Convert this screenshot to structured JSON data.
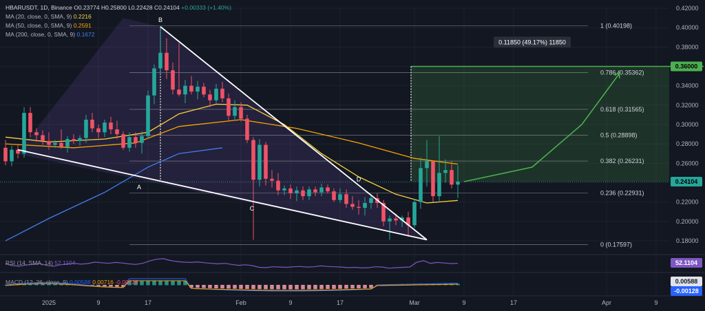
{
  "header": {
    "symbol": "HBARUSDT, 1D, Binance",
    "open": "O0.23774",
    "high": "H0.25800",
    "low": "L0.22428",
    "close": "C0.24104",
    "change": "+0.00333 (+1.40%)"
  },
  "ma_legend": [
    {
      "label": "MA (20, close, 0, SMA, 9)",
      "value": "0.2216",
      "color": "#f7d23c"
    },
    {
      "label": "MA (50, close, 0, SMA, 9)",
      "value": "0.2591",
      "color": "#f7a600"
    },
    {
      "label": "MA (200, close, 0, SMA, 9)",
      "value": "0.1672",
      "color": "#3f7ef0"
    }
  ],
  "rsi": {
    "label": "RSI (14, SMA, 14)",
    "value": "52.1104"
  },
  "macd": {
    "label": "MACD (12, 26, close, 9)",
    "value1": "0.00588",
    "value2": "0.00716",
    "value3": "-0.00128",
    "axis_values": [
      "0.00588",
      "-0.00128"
    ]
  },
  "price_axis": [
    "0.42000",
    "0.40000",
    "0.38000",
    "0.36000",
    "0.34000",
    "0.32000",
    "0.30000",
    "0.28000",
    "0.26000",
    "0.24000",
    "0.22000",
    "0.20000",
    "0.18000"
  ],
  "price_badges": {
    "target": "0.36000",
    "current": "0.24104"
  },
  "rsi_badge": "52.1104",
  "macd_badges": [
    "0.00588",
    "-0.00128"
  ],
  "time_axis": [
    "2025",
    "9",
    "17",
    "Feb",
    "9",
    "17",
    "Mar",
    "9",
    "17",
    "Apr",
    "9"
  ],
  "measure_label": "0.11850 (49.17%) 11850",
  "colors": {
    "up": "#26a69a",
    "down": "#ef5367",
    "ma20": "#f7d23c",
    "ma50": "#f7a600",
    "ma200": "#3f7ef0",
    "rsi": "#7e57c2",
    "fib": "#b2b5be",
    "projection": "#4caf50"
  },
  "chart_data": {
    "type": "candlestick",
    "symbol": "HBARUSDT",
    "interval": "1D",
    "x_range": [
      "2024-12-25",
      "2025-04-12"
    ],
    "ylim": [
      0.17,
      0.42
    ],
    "candles": [
      {
        "d": "2024-12-25",
        "o": 0.276,
        "h": 0.284,
        "l": 0.258,
        "c": 0.262
      },
      {
        "d": "2024-12-26",
        "o": 0.262,
        "h": 0.278,
        "l": 0.257,
        "c": 0.274
      },
      {
        "d": "2024-12-27",
        "o": 0.274,
        "h": 0.279,
        "l": 0.265,
        "c": 0.27
      },
      {
        "d": "2024-12-28",
        "o": 0.27,
        "h": 0.318,
        "l": 0.266,
        "c": 0.312
      },
      {
        "d": "2024-12-29",
        "o": 0.312,
        "h": 0.318,
        "l": 0.287,
        "c": 0.292
      },
      {
        "d": "2024-12-30",
        "o": 0.292,
        "h": 0.296,
        "l": 0.282,
        "c": 0.289
      },
      {
        "d": "2024-12-31",
        "o": 0.289,
        "h": 0.294,
        "l": 0.279,
        "c": 0.283
      },
      {
        "d": "2025-01-01",
        "o": 0.283,
        "h": 0.292,
        "l": 0.274,
        "c": 0.279
      },
      {
        "d": "2025-01-02",
        "o": 0.279,
        "h": 0.284,
        "l": 0.276,
        "c": 0.281
      },
      {
        "d": "2025-01-03",
        "o": 0.281,
        "h": 0.295,
        "l": 0.275,
        "c": 0.277
      },
      {
        "d": "2025-01-04",
        "o": 0.277,
        "h": 0.288,
        "l": 0.271,
        "c": 0.285
      },
      {
        "d": "2025-01-05",
        "o": 0.285,
        "h": 0.29,
        "l": 0.28,
        "c": 0.283
      },
      {
        "d": "2025-01-06",
        "o": 0.283,
        "h": 0.289,
        "l": 0.278,
        "c": 0.286
      },
      {
        "d": "2025-01-07",
        "o": 0.286,
        "h": 0.31,
        "l": 0.281,
        "c": 0.305
      },
      {
        "d": "2025-01-08",
        "o": 0.305,
        "h": 0.312,
        "l": 0.292,
        "c": 0.296
      },
      {
        "d": "2025-01-09",
        "o": 0.296,
        "h": 0.3,
        "l": 0.286,
        "c": 0.292
      },
      {
        "d": "2025-01-10",
        "o": 0.292,
        "h": 0.305,
        "l": 0.287,
        "c": 0.302
      },
      {
        "d": "2025-01-11",
        "o": 0.302,
        "h": 0.308,
        "l": 0.29,
        "c": 0.295
      },
      {
        "d": "2025-01-12",
        "o": 0.295,
        "h": 0.304,
        "l": 0.285,
        "c": 0.29
      },
      {
        "d": "2025-01-13",
        "o": 0.29,
        "h": 0.293,
        "l": 0.274,
        "c": 0.276
      },
      {
        "d": "2025-01-14",
        "o": 0.276,
        "h": 0.292,
        "l": 0.272,
        "c": 0.287
      },
      {
        "d": "2025-01-15",
        "o": 0.287,
        "h": 0.292,
        "l": 0.276,
        "c": 0.281
      },
      {
        "d": "2025-01-16",
        "o": 0.281,
        "h": 0.293,
        "l": 0.27,
        "c": 0.288
      },
      {
        "d": "2025-01-17",
        "o": 0.288,
        "h": 0.335,
        "l": 0.286,
        "c": 0.33
      },
      {
        "d": "2025-01-18",
        "o": 0.33,
        "h": 0.362,
        "l": 0.321,
        "c": 0.358
      },
      {
        "d": "2025-01-19",
        "o": 0.358,
        "h": 0.401,
        "l": 0.352,
        "c": 0.374
      },
      {
        "d": "2025-01-20",
        "o": 0.374,
        "h": 0.389,
        "l": 0.347,
        "c": 0.356
      },
      {
        "d": "2025-01-21",
        "o": 0.356,
        "h": 0.364,
        "l": 0.331,
        "c": 0.336
      },
      {
        "d": "2025-01-22",
        "o": 0.336,
        "h": 0.384,
        "l": 0.329,
        "c": 0.331
      },
      {
        "d": "2025-01-23",
        "o": 0.331,
        "h": 0.346,
        "l": 0.322,
        "c": 0.34
      },
      {
        "d": "2025-01-24",
        "o": 0.34,
        "h": 0.35,
        "l": 0.331,
        "c": 0.334
      },
      {
        "d": "2025-01-25",
        "o": 0.334,
        "h": 0.345,
        "l": 0.326,
        "c": 0.339
      },
      {
        "d": "2025-01-26",
        "o": 0.339,
        "h": 0.343,
        "l": 0.328,
        "c": 0.331
      },
      {
        "d": "2025-01-27",
        "o": 0.331,
        "h": 0.336,
        "l": 0.318,
        "c": 0.325
      },
      {
        "d": "2025-01-28",
        "o": 0.325,
        "h": 0.342,
        "l": 0.322,
        "c": 0.337
      },
      {
        "d": "2025-01-29",
        "o": 0.337,
        "h": 0.344,
        "l": 0.323,
        "c": 0.327
      },
      {
        "d": "2025-01-30",
        "o": 0.327,
        "h": 0.332,
        "l": 0.303,
        "c": 0.309
      },
      {
        "d": "2025-01-31",
        "o": 0.309,
        "h": 0.325,
        "l": 0.304,
        "c": 0.318
      },
      {
        "d": "2025-02-01",
        "o": 0.318,
        "h": 0.323,
        "l": 0.303,
        "c": 0.306
      },
      {
        "d": "2025-02-02",
        "o": 0.306,
        "h": 0.31,
        "l": 0.281,
        "c": 0.284
      },
      {
        "d": "2025-02-03",
        "o": 0.284,
        "h": 0.287,
        "l": 0.181,
        "c": 0.243
      },
      {
        "d": "2025-02-04",
        "o": 0.243,
        "h": 0.285,
        "l": 0.236,
        "c": 0.279
      },
      {
        "d": "2025-02-05",
        "o": 0.279,
        "h": 0.282,
        "l": 0.237,
        "c": 0.244
      },
      {
        "d": "2025-02-06",
        "o": 0.244,
        "h": 0.253,
        "l": 0.235,
        "c": 0.242
      },
      {
        "d": "2025-02-07",
        "o": 0.242,
        "h": 0.25,
        "l": 0.227,
        "c": 0.232
      },
      {
        "d": "2025-02-08",
        "o": 0.232,
        "h": 0.237,
        "l": 0.227,
        "c": 0.234
      },
      {
        "d": "2025-02-09",
        "o": 0.234,
        "h": 0.238,
        "l": 0.223,
        "c": 0.229
      },
      {
        "d": "2025-02-10",
        "o": 0.229,
        "h": 0.236,
        "l": 0.221,
        "c": 0.232
      },
      {
        "d": "2025-02-11",
        "o": 0.232,
        "h": 0.236,
        "l": 0.222,
        "c": 0.226
      },
      {
        "d": "2025-02-12",
        "o": 0.226,
        "h": 0.236,
        "l": 0.222,
        "c": 0.233
      },
      {
        "d": "2025-02-13",
        "o": 0.233,
        "h": 0.236,
        "l": 0.226,
        "c": 0.23
      },
      {
        "d": "2025-02-14",
        "o": 0.23,
        "h": 0.239,
        "l": 0.226,
        "c": 0.235
      },
      {
        "d": "2025-02-15",
        "o": 0.235,
        "h": 0.238,
        "l": 0.229,
        "c": 0.231
      },
      {
        "d": "2025-02-16",
        "o": 0.231,
        "h": 0.234,
        "l": 0.22,
        "c": 0.222
      },
      {
        "d": "2025-02-17",
        "o": 0.222,
        "h": 0.234,
        "l": 0.219,
        "c": 0.228
      },
      {
        "d": "2025-02-18",
        "o": 0.228,
        "h": 0.233,
        "l": 0.214,
        "c": 0.218
      },
      {
        "d": "2025-02-19",
        "o": 0.218,
        "h": 0.226,
        "l": 0.212,
        "c": 0.215
      },
      {
        "d": "2025-02-20",
        "o": 0.215,
        "h": 0.222,
        "l": 0.207,
        "c": 0.214
      },
      {
        "d": "2025-02-21",
        "o": 0.214,
        "h": 0.225,
        "l": 0.206,
        "c": 0.219
      },
      {
        "d": "2025-02-22",
        "o": 0.219,
        "h": 0.228,
        "l": 0.213,
        "c": 0.224
      },
      {
        "d": "2025-02-23",
        "o": 0.224,
        "h": 0.229,
        "l": 0.214,
        "c": 0.219
      },
      {
        "d": "2025-02-24",
        "o": 0.219,
        "h": 0.222,
        "l": 0.195,
        "c": 0.2
      },
      {
        "d": "2025-02-25",
        "o": 0.2,
        "h": 0.206,
        "l": 0.181,
        "c": 0.203
      },
      {
        "d": "2025-02-26",
        "o": 0.203,
        "h": 0.208,
        "l": 0.196,
        "c": 0.201
      },
      {
        "d": "2025-02-27",
        "o": 0.201,
        "h": 0.206,
        "l": 0.194,
        "c": 0.204
      },
      {
        "d": "2025-02-28",
        "o": 0.204,
        "h": 0.21,
        "l": 0.184,
        "c": 0.196
      },
      {
        "d": "2025-03-01",
        "o": 0.196,
        "h": 0.223,
        "l": 0.193,
        "c": 0.22
      },
      {
        "d": "2025-03-02",
        "o": 0.22,
        "h": 0.266,
        "l": 0.213,
        "c": 0.255
      },
      {
        "d": "2025-03-03",
        "o": 0.255,
        "h": 0.284,
        "l": 0.236,
        "c": 0.262
      },
      {
        "d": "2025-03-04",
        "o": 0.262,
        "h": 0.263,
        "l": 0.22,
        "c": 0.226
      },
      {
        "d": "2025-03-05",
        "o": 0.226,
        "h": 0.288,
        "l": 0.221,
        "c": 0.25
      },
      {
        "d": "2025-03-06",
        "o": 0.25,
        "h": 0.264,
        "l": 0.24,
        "c": 0.253
      },
      {
        "d": "2025-03-07",
        "o": 0.253,
        "h": 0.262,
        "l": 0.234,
        "c": 0.238
      },
      {
        "d": "2025-03-08",
        "o": 0.238,
        "h": 0.258,
        "l": 0.224,
        "c": 0.241
      }
    ],
    "moving_averages": [
      {
        "name": "MA (20, close, 0, SMA, 9)",
        "last": 0.2216,
        "points": [
          [
            "2024-12-25",
            0.287
          ],
          [
            "2025-01-01",
            0.282
          ],
          [
            "2025-01-10",
            0.285
          ],
          [
            "2025-01-17",
            0.292
          ],
          [
            "2025-01-22",
            0.311
          ],
          [
            "2025-01-28",
            0.321
          ],
          [
            "2025-02-02",
            0.32
          ],
          [
            "2025-02-08",
            0.3
          ],
          [
            "2025-02-14",
            0.27
          ],
          [
            "2025-02-20",
            0.246
          ],
          [
            "2025-02-26",
            0.228
          ],
          [
            "2025-03-03",
            0.219
          ],
          [
            "2025-03-08",
            0.2216
          ]
        ]
      },
      {
        "name": "MA (50, close, 0, SMA, 9)",
        "last": 0.2591,
        "points": [
          [
            "2024-12-25",
            0.28
          ],
          [
            "2025-01-05",
            0.276
          ],
          [
            "2025-01-15",
            0.281
          ],
          [
            "2025-01-22",
            0.298
          ],
          [
            "2025-02-01",
            0.305
          ],
          [
            "2025-02-10",
            0.296
          ],
          [
            "2025-02-20",
            0.281
          ],
          [
            "2025-03-01",
            0.265
          ],
          [
            "2025-03-08",
            0.2591
          ]
        ]
      },
      {
        "name": "MA (200, close, 0, SMA, 9)",
        "last": 0.1672,
        "points": [
          [
            "2024-12-25",
            0.18
          ],
          [
            "2025-01-01",
            0.203
          ],
          [
            "2025-01-10",
            0.23
          ],
          [
            "2025-01-17",
            0.256
          ],
          [
            "2025-01-22",
            0.27
          ],
          [
            "2025-01-29",
            0.276
          ]
        ]
      }
    ],
    "pattern_points": [
      {
        "label": "B",
        "d": "2025-01-19",
        "price": 0.401
      },
      {
        "label": "A",
        "d": "2025-01-16",
        "price": 0.243
      },
      {
        "label": "C",
        "d": "2025-02-03",
        "price": 0.221
      },
      {
        "label": "D",
        "d": "2025-02-20",
        "price": 0.237
      }
    ],
    "trendlines": [
      {
        "from": [
          "2024-12-27",
          0.274
        ],
        "to": [
          "2025-03-03",
          0.181
        ]
      },
      {
        "from": [
          "2025-01-19",
          0.401
        ],
        "to": [
          "2025-03-03",
          0.181
        ]
      }
    ],
    "fib_levels": [
      {
        "ratio": "1",
        "price": "0.40198"
      },
      {
        "ratio": "0.786",
        "price": "0.35362"
      },
      {
        "ratio": "0.618",
        "price": "0.31565"
      },
      {
        "ratio": "0.5",
        "price": "0.28898"
      },
      {
        "ratio": "0.382",
        "price": "0.26231"
      },
      {
        "ratio": "0.236",
        "price": "0.22931"
      },
      {
        "ratio": "0",
        "price": "0.17597"
      }
    ],
    "target_box": {
      "from": "2025-02-28",
      "to": "2025-04-12",
      "low": 0.24104,
      "high": 0.36,
      "label": "0.11850 (49.17%) 11850"
    },
    "projection": [
      [
        "2025-03-09",
        0.241
      ],
      [
        "2025-03-20",
        0.256
      ],
      [
        "2025-03-28",
        0.3
      ],
      [
        "2025-04-03",
        0.352
      ]
    ],
    "rsi_last": 52.1104,
    "macd_last": {
      "macd": 0.00588,
      "signal": 0.00716,
      "histogram": -0.00128
    }
  }
}
